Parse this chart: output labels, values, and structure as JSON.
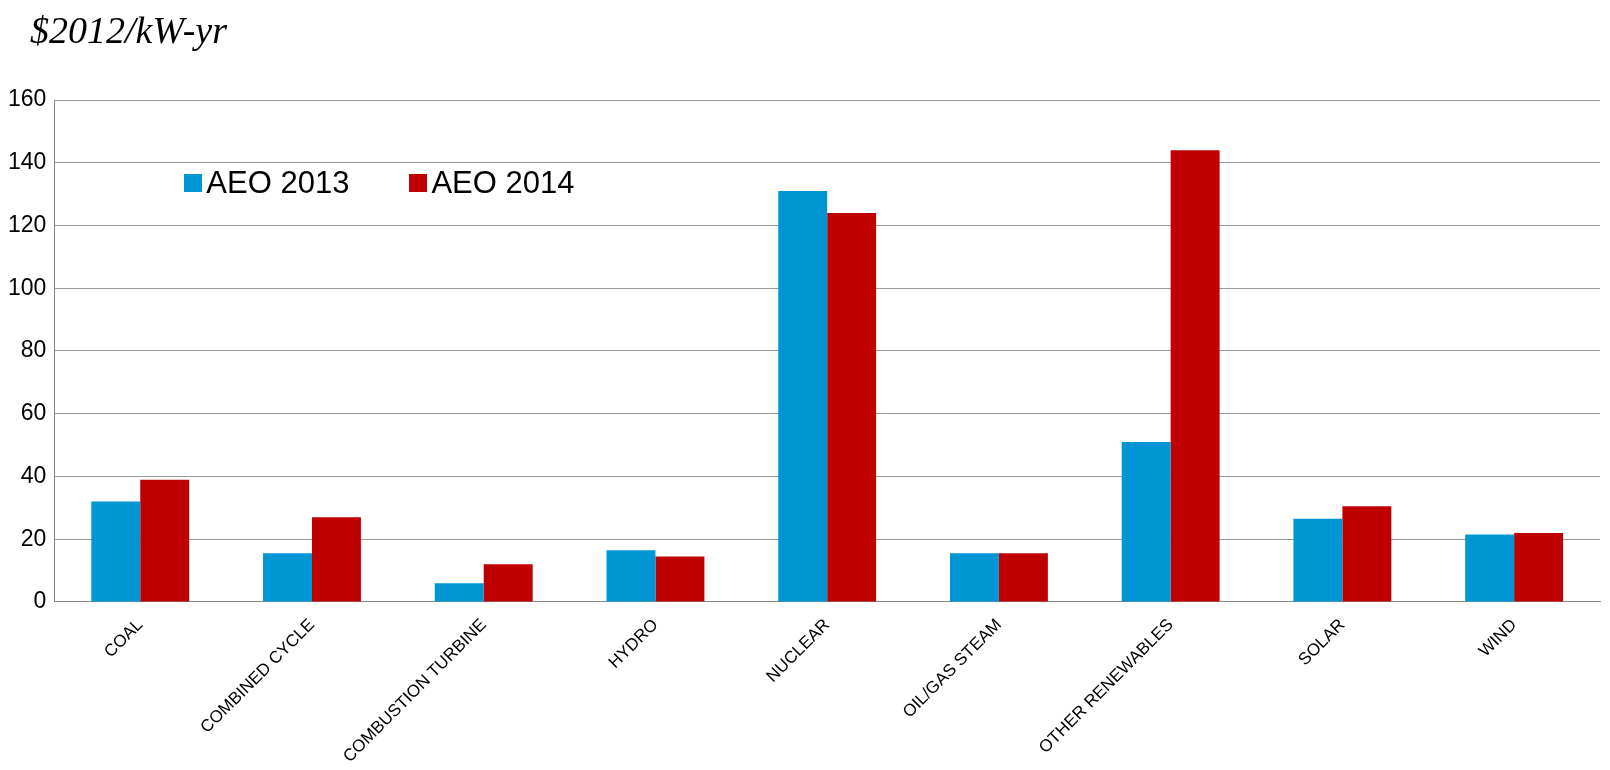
{
  "chart_data": {
    "type": "bar",
    "ylabel": "$2012/kW-yr",
    "categories": [
      "COAL",
      "COMBINED CYCLE",
      "COMBUSTION TURBINE",
      "HYDRO",
      "NUCLEAR",
      "OIL/GAS STEAM",
      "OTHER RENEWABLES",
      "SOLAR",
      "WIND"
    ],
    "series": [
      {
        "name": "AEO 2013",
        "color": "#0096d6",
        "values": [
          32,
          15.5,
          6,
          16.5,
          131,
          15.5,
          51,
          26.5,
          21.5
        ]
      },
      {
        "name": "AEO 2014",
        "color": "#c00000",
        "values": [
          39,
          27,
          12,
          14.5,
          124,
          15.5,
          144,
          30.5,
          22
        ]
      }
    ],
    "ylim": [
      0,
      160
    ],
    "yticks": [
      0,
      20,
      40,
      60,
      80,
      100,
      120,
      140,
      160
    ],
    "grid": "y",
    "legend": "top left"
  }
}
